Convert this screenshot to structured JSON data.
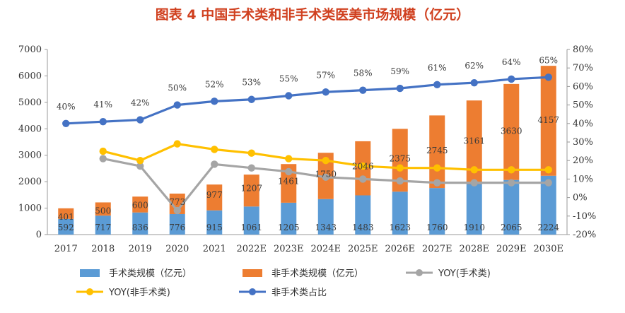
{
  "chart_data": {
    "type": "bar",
    "title": "图表 4  中国手术类和非手术类医美市场规模（亿元）",
    "categories": [
      "2017",
      "2018",
      "2019",
      "2020",
      "2021",
      "2022E",
      "2023E",
      "2024E",
      "2025E",
      "2026E",
      "2027E",
      "2028E",
      "2029E",
      "2030E"
    ],
    "series": [
      {
        "name": "手术类规模（亿元）",
        "kind": "bar",
        "axis": "left",
        "stack": "s",
        "color": "#5b9bd5",
        "values": [
          592,
          717,
          836,
          776,
          915,
          1061,
          1205,
          1343,
          1483,
          1623,
          1760,
          1910,
          2065,
          2224
        ]
      },
      {
        "name": "非手术类规模（亿元）",
        "kind": "bar",
        "axis": "left",
        "stack": "s",
        "color": "#ed7d31",
        "values": [
          401,
          500,
          600,
          773,
          977,
          1207,
          1461,
          1750,
          2046,
          2375,
          2745,
          3161,
          3630,
          4157
        ]
      },
      {
        "name": "YOY(手术类)",
        "kind": "line",
        "axis": "right",
        "color": "#a5a5a5",
        "values": [
          null,
          21,
          17,
          -7,
          18,
          16,
          14,
          11,
          10,
          9,
          8,
          8,
          8,
          8
        ]
      },
      {
        "name": "YOY(非手术类)",
        "kind": "line",
        "axis": "right",
        "color": "#ffc000",
        "values": [
          null,
          25,
          20,
          29,
          26,
          24,
          21,
          20,
          17,
          16,
          16,
          15,
          15,
          15
        ]
      },
      {
        "name": "非手术类占比",
        "kind": "line",
        "axis": "right",
        "color": "#4472c4",
        "values": [
          40,
          41,
          42,
          50,
          52,
          53,
          55,
          57,
          58,
          59,
          61,
          62,
          64,
          65
        ]
      }
    ],
    "percent_labels": [
      "40%",
      "41%",
      "42%",
      "50%",
      "52%",
      "53%",
      "55%",
      "57%",
      "58%",
      "59%",
      "61%",
      "62%",
      "64%",
      "65%"
    ],
    "y_left": {
      "min": 0,
      "max": 7000,
      "step": 1000,
      "ticks": [
        "0",
        "1000",
        "2000",
        "3000",
        "4000",
        "5000",
        "6000",
        "7000"
      ]
    },
    "y_right": {
      "min": -20,
      "max": 80,
      "step": 10,
      "ticks": [
        "-20%",
        "-10%",
        "0%",
        "10%",
        "20%",
        "30%",
        "40%",
        "50%",
        "60%",
        "70%",
        "80%"
      ]
    },
    "legend": [
      "手术类规模（亿元）",
      "非手术类规模（亿元）",
      "YOY(手术类)",
      "YOY(非手术类)",
      "非手术类占比"
    ],
    "legend_position": "bottom",
    "grid": false
  }
}
